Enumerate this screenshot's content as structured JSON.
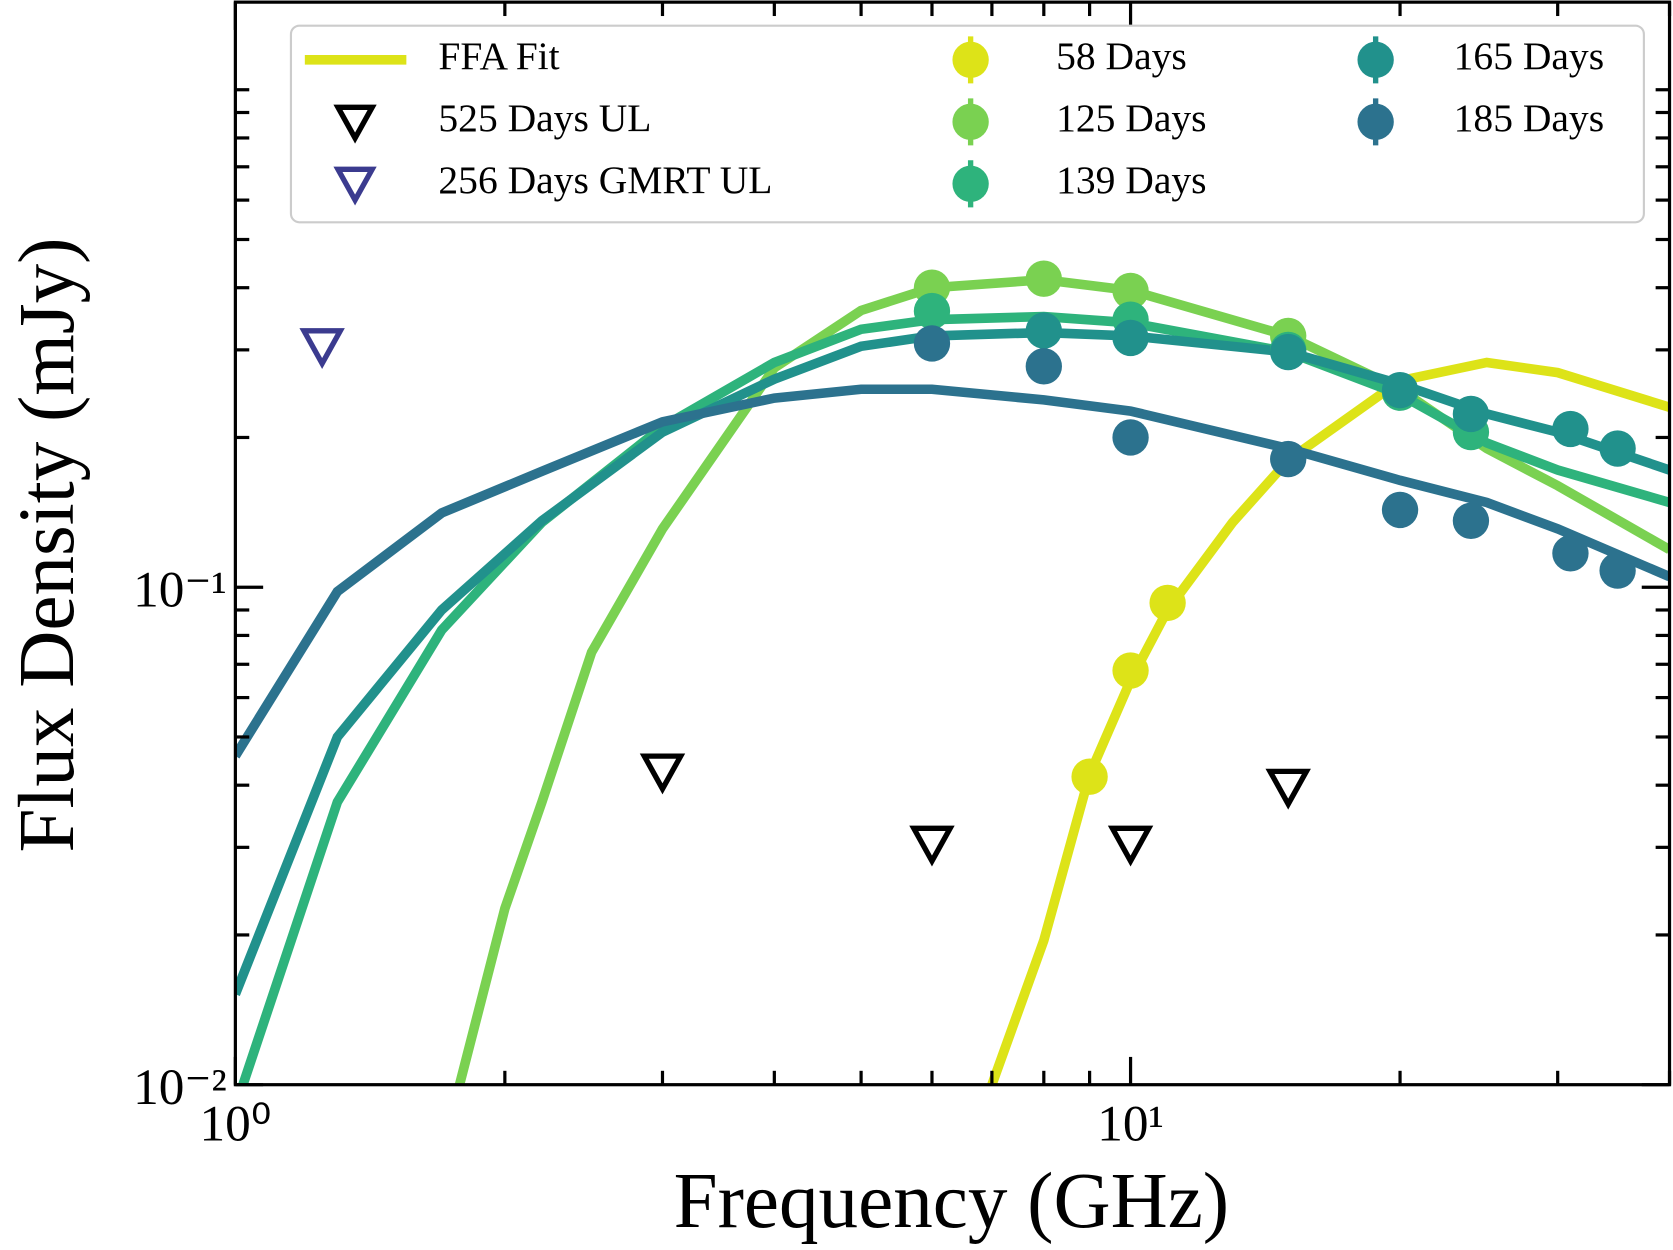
{
  "chart_data": {
    "type": "scatter",
    "x_label": "Frequency (GHz)",
    "y_label": "Flux Density (mJy)",
    "xscale": "log",
    "yscale": "log",
    "xlim": [
      1,
      40
    ],
    "ylim": [
      0.01,
      1.5
    ],
    "xticks": [
      {
        "value": 1,
        "label": "10⁰"
      },
      {
        "value": 10,
        "label": "10¹"
      }
    ],
    "yticks": [
      {
        "value": 0.01,
        "label": "10⁻²"
      },
      {
        "value": 0.1,
        "label": "10⁻¹"
      }
    ],
    "xticks_minor": [
      2,
      3,
      4,
      5,
      6,
      7,
      8,
      9,
      20,
      30,
      40
    ],
    "yticks_minor": [
      0.02,
      0.03,
      0.04,
      0.05,
      0.06,
      0.07,
      0.08,
      0.09,
      0.2,
      0.3,
      0.4,
      0.5,
      0.6,
      0.7,
      0.8,
      0.9,
      1
    ],
    "legend": "upper center",
    "fit_label": "FFA Fit",
    "fit_legend_color": "#dde318",
    "series": [
      {
        "name": "58 Days",
        "color": "#dde318",
        "x": [
          9,
          10,
          11
        ],
        "values": [
          0.0416,
          0.068,
          0.093
        ]
      },
      {
        "name": "125 Days",
        "color": "#7ad151",
        "x": [
          6,
          8,
          10,
          15
        ],
        "values": [
          0.4,
          0.417,
          0.394,
          0.32
        ]
      },
      {
        "name": "139 Days",
        "color": "#2eb37c",
        "x": [
          6,
          10,
          15,
          20,
          24
        ],
        "values": [
          0.359,
          0.345,
          0.3,
          0.246,
          0.205
        ]
      },
      {
        "name": "165 Days",
        "color": "#21918c",
        "x": [
          8,
          10,
          15,
          20,
          24,
          31,
          35
        ],
        "values": [
          0.328,
          0.317,
          0.297,
          0.249,
          0.223,
          0.208,
          0.19
        ]
      },
      {
        "name": "185 Days",
        "color": "#2c728e",
        "x": [
          6,
          8,
          10,
          15,
          20,
          24,
          31,
          35
        ],
        "values": [
          0.309,
          0.278,
          0.2,
          0.181,
          0.143,
          0.136,
          0.117,
          0.108
        ]
      }
    ],
    "upper_limits": [
      {
        "name": "525 Days UL",
        "color": "#000000",
        "x": [
          3,
          6,
          10,
          15
        ],
        "values": [
          0.0426,
          0.0305,
          0.0305,
          0.0397
        ]
      },
      {
        "name": "256 Days GMRT UL",
        "color": "#3b3b8f",
        "x": [
          1.25
        ],
        "values": [
          0.305
        ]
      }
    ],
    "fits": [
      {
        "color": "#dde318",
        "x": [
          7,
          8,
          9,
          10,
          11,
          13,
          15,
          20,
          25,
          30,
          40
        ],
        "values": [
          0.01,
          0.0195,
          0.042,
          0.065,
          0.09,
          0.135,
          0.18,
          0.26,
          0.283,
          0.27,
          0.23
        ]
      },
      {
        "color": "#7ad151",
        "x": [
          1.78,
          2,
          2.2,
          2.5,
          3,
          4,
          5,
          6,
          8,
          10,
          15,
          20,
          25,
          30,
          40
        ],
        "values": [
          0.01,
          0.0226,
          0.037,
          0.074,
          0.131,
          0.276,
          0.36,
          0.4,
          0.415,
          0.395,
          0.32,
          0.25,
          0.19,
          0.16,
          0.119
        ]
      },
      {
        "color": "#2eb37c",
        "x": [
          1,
          1.3,
          1.7,
          2.2,
          3,
          4,
          5,
          6,
          8,
          10,
          15,
          20,
          25,
          30,
          40
        ],
        "values": [
          0.009,
          0.037,
          0.082,
          0.135,
          0.21,
          0.283,
          0.33,
          0.345,
          0.35,
          0.34,
          0.297,
          0.244,
          0.195,
          0.172,
          0.148
        ]
      },
      {
        "color": "#21918c",
        "x": [
          1,
          1.3,
          1.7,
          2.2,
          3,
          4,
          5,
          6,
          8,
          10,
          15,
          20,
          25,
          30,
          40
        ],
        "values": [
          0.0152,
          0.05,
          0.09,
          0.136,
          0.205,
          0.262,
          0.305,
          0.32,
          0.325,
          0.32,
          0.297,
          0.256,
          0.223,
          0.205,
          0.172
        ]
      },
      {
        "color": "#2c728e",
        "x": [
          1,
          1.3,
          1.7,
          2.2,
          3,
          4,
          5,
          6,
          8,
          10,
          15,
          20,
          25,
          30,
          40
        ],
        "values": [
          0.0458,
          0.098,
          0.141,
          0.171,
          0.215,
          0.24,
          0.25,
          0.25,
          0.238,
          0.226,
          0.19,
          0.164,
          0.148,
          0.131,
          0.105
        ]
      }
    ]
  }
}
